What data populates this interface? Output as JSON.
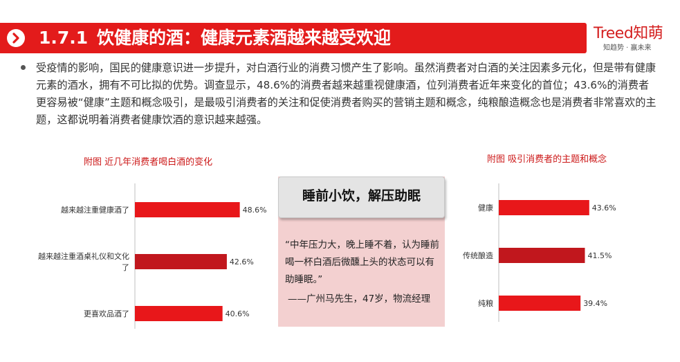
{
  "header": {
    "section_number": "1.7.1",
    "title": "饮健康的酒：健康元素酒越来越受欢迎"
  },
  "brand": {
    "name": "Treed知萌",
    "tagline": "知趋势 · 赢未来"
  },
  "intro": {
    "text": "受疫情的影响，国民的健康意识进一步提升，对白酒行业的消费习惯产生了影响。虽然消费者对白酒的关注因素多元化，但是带有健康元素的酒水，拥有不可比拟的优势。调查显示，48.6%的消费者越来越重视健康酒，位列消费者近年来变化的首位；43.6%的消费者更容易被“健康”主题和概念吸引，是最吸引消费者的关注和促使消费者购买的营销主题和概念，纯粮酿造概念也是消费者非常喜欢的主题，这都说明着消费者健康饮酒的意识越来越强。"
  },
  "quote": {
    "heading": "睡前小饮，解压助眠",
    "body": "“中年压力大，晚上睡不着，认为睡前喝一杯白酒后微醺上头的状态可以有助睡眠。”",
    "author": "——广州马先生，47岁，物流经理"
  },
  "colors": {
    "accent": "#e31b1b",
    "bar_bright": "#e8171a",
    "bar_dark": "#c1171d",
    "quote_bg": "#f3d0d0"
  },
  "chart_data": [
    {
      "type": "bar",
      "orientation": "horizontal",
      "title": "附图 近几年消费者喝白酒的变化",
      "categories": [
        "越来越注重健康酒了",
        "越来越注重酒桌礼仪和文化了",
        "更喜欢品酒了"
      ],
      "values": [
        48.6,
        42.6,
        40.6
      ],
      "value_labels": [
        "48.6%",
        "42.6%",
        "40.6%"
      ],
      "bar_colors": [
        "#e8171a",
        "#c1171d",
        "#e8171a"
      ],
      "xlim": [
        0,
        100
      ],
      "grid": false,
      "legend": "none"
    },
    {
      "type": "bar",
      "orientation": "horizontal",
      "title": "附图 吸引消费者的主题和概念",
      "categories": [
        "健康",
        "传统酿造",
        "纯粮"
      ],
      "values": [
        43.6,
        41.5,
        39.4
      ],
      "value_labels": [
        "43.6%",
        "41.5%",
        "39.4%"
      ],
      "bar_colors": [
        "#e8171a",
        "#c1171d",
        "#e8171a"
      ],
      "xlim": [
        0,
        100
      ],
      "grid": false,
      "legend": "none"
    }
  ]
}
